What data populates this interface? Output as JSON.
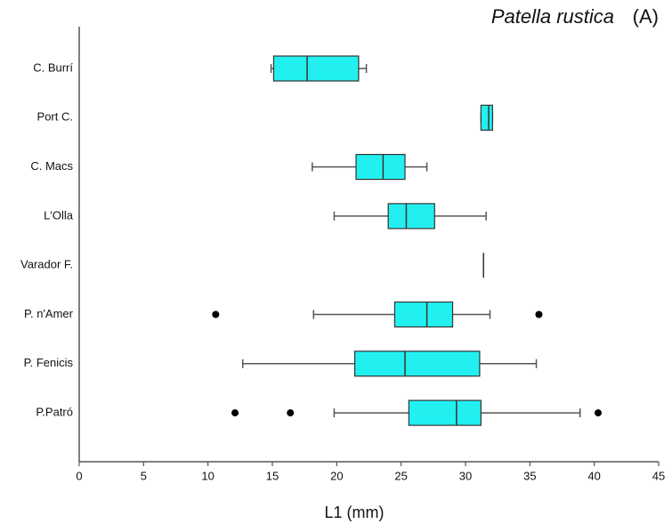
{
  "chart_data": {
    "type": "boxplot",
    "title": "Patella rustica",
    "panel": "(A)",
    "x_label": "L1 (mm)",
    "categories": [
      "C. Burrí",
      "Port C.",
      "C. Macs",
      "L'Olla",
      "Varador F.",
      "P. n'Amer",
      "P. Fenicis",
      "P.Patró"
    ],
    "stats": [
      {
        "low": 14.9,
        "q1": 15.1,
        "median": 17.7,
        "q3": 21.7,
        "high": 22.3,
        "outliers": []
      },
      {
        "low": 31.2,
        "q1": 31.2,
        "median": 31.8,
        "q3": 32.1,
        "high": 32.1,
        "outliers": []
      },
      {
        "low": 18.1,
        "q1": 21.5,
        "median": 23.6,
        "q3": 25.3,
        "high": 27.0,
        "outliers": []
      },
      {
        "low": 19.8,
        "q1": 24.0,
        "median": 25.4,
        "q3": 27.6,
        "high": 31.6,
        "outliers": []
      },
      {
        "low": 31.4,
        "q1": 31.4,
        "median": 31.4,
        "q3": 31.4,
        "high": 31.4,
        "outliers": []
      },
      {
        "low": 18.2,
        "q1": 24.5,
        "median": 27.0,
        "q3": 29.0,
        "high": 31.9,
        "outliers": [
          10.6,
          35.7
        ]
      },
      {
        "low": 12.7,
        "q1": 21.4,
        "median": 25.3,
        "q3": 31.1,
        "high": 35.5,
        "outliers": []
      },
      {
        "low": 19.8,
        "q1": 25.6,
        "median": 29.3,
        "q3": 31.2,
        "high": 38.9,
        "outliers": [
          12.1,
          16.4,
          40.3
        ]
      }
    ],
    "color": "#22f0f0",
    "xlim": [
      0,
      45
    ],
    "xticks": [
      0,
      5,
      10,
      15,
      20,
      25,
      30,
      35,
      40,
      45
    ]
  }
}
